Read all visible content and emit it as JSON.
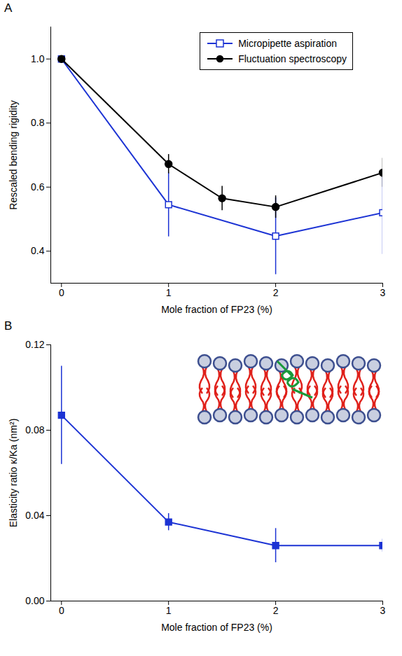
{
  "chart_data": [
    {
      "type": "line",
      "panel_label": "A",
      "x_label": "Mole fraction of FP23 (%)",
      "y_label": "Rescaled bending rigidity",
      "xlim": [
        -0.1,
        3
      ],
      "xticks": [
        0,
        1,
        2,
        3
      ],
      "ylim": [
        0.3,
        1.1
      ],
      "yticks": [
        0.4,
        0.6,
        0.8,
        {
          "value": 1,
          "label": "1.0"
        }
      ],
      "legend": "top-right",
      "series": [
        {
          "name": "Micropipette aspiration",
          "color": "#1c33d4",
          "marker": "square-open",
          "x": [
            0,
            1,
            2,
            3
          ],
          "values": [
            1.0,
            0.545,
            0.447,
            0.52
          ],
          "errors": [
            0,
            0.1,
            0.12,
            0.13
          ]
        },
        {
          "name": "Fluctuation spectroscopy",
          "color": "#000000",
          "marker": "circle",
          "x": [
            0,
            1,
            1.5,
            2,
            3
          ],
          "values": [
            1.0,
            0.672,
            0.565,
            0.538,
            0.645
          ],
          "errors": [
            0,
            0.03,
            0.038,
            0.035,
            0.045
          ]
        }
      ]
    },
    {
      "type": "line",
      "panel_label": "B",
      "x_label": "Mole fraction of FP23 (%)",
      "y_label": "Elasticity ratio κ/Ka (nm²)",
      "xlim": [
        -0.1,
        3
      ],
      "xticks": [
        0,
        1,
        2,
        3
      ],
      "ylim": [
        0,
        0.12
      ],
      "yticks": [
        {
          "value": 0,
          "label": "0.00"
        },
        {
          "value": 0.04,
          "label": "0.04"
        },
        {
          "value": 0.08,
          "label": "0.08"
        },
        {
          "value": 0.12,
          "label": "0.12"
        }
      ],
      "series": [
        {
          "color": "#1c33d4",
          "marker": "square",
          "x": [
            0,
            1,
            2,
            3
          ],
          "values": [
            0.087,
            0.037,
            0.026,
            0.026
          ],
          "errors": [
            0.023,
            0.004,
            0.008,
            0.003
          ]
        }
      ]
    }
  ]
}
